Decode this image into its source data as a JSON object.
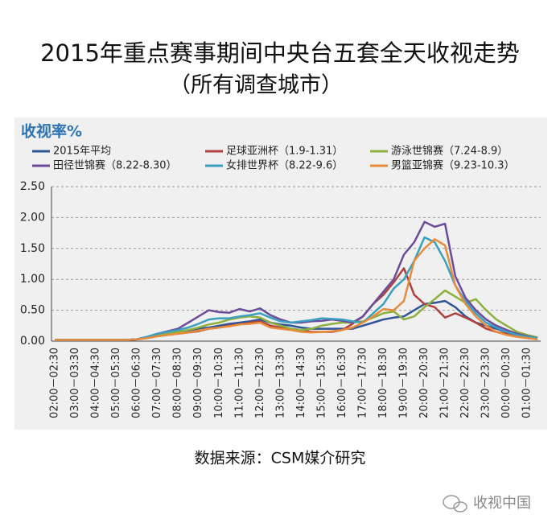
{
  "chart_data": {
    "type": "line",
    "title": "2015年重点赛事期间中央台五套全天收视走势",
    "subtitle": "（所有调查城市）",
    "y_label": "收视率%",
    "source": "数据来源：CSM媒介研究",
    "watermark": "收视中国",
    "categories": [
      "02:00－02:30",
      null,
      "03:00－03:30",
      null,
      "04:00－04:30",
      null,
      "05:00－05:30",
      null,
      "06:00－06:30",
      null,
      "07:00－07:30",
      null,
      "08:00－08:30",
      null,
      "09:00－09:30",
      null,
      "10:00－10:30",
      null,
      "11:00－11:30",
      null,
      "12:00－12:30",
      null,
      "13:00－13:30",
      null,
      "14:00－14:30",
      null,
      "15:00－15:30",
      null,
      "16:00－16:30",
      null,
      "17:00－17:30",
      null,
      "18:00－18:30",
      null,
      "19:00－19:30",
      null,
      "20:00－20:30",
      null,
      "21:00－21:30",
      null,
      "22:00－22:30",
      null,
      "23:00－23:30",
      null,
      "00:00－00:30",
      null,
      "01:00－01:30",
      null
    ],
    "ylim": [
      0,
      2.5
    ],
    "yticks": [
      {
        "value": 0,
        "label": "0.00"
      },
      {
        "value": 0.5,
        "label": "0.50"
      },
      {
        "value": 1,
        "label": "1.00"
      },
      {
        "value": 1.5,
        "label": "1.50"
      },
      {
        "value": 2,
        "label": "2.00"
      },
      {
        "value": 2.5,
        "label": "2.50"
      }
    ],
    "grid": true,
    "series": [
      {
        "name": "2015年平均",
        "color": "#2f5597",
        "values": [
          0.02,
          0.02,
          0.02,
          0.02,
          0.02,
          0.02,
          0.02,
          0.02,
          0.03,
          0.06,
          0.1,
          0.13,
          0.15,
          0.17,
          0.2,
          0.22,
          0.25,
          0.28,
          0.3,
          0.32,
          0.35,
          0.3,
          0.27,
          0.25,
          0.22,
          0.2,
          0.2,
          0.2,
          0.2,
          0.2,
          0.25,
          0.3,
          0.35,
          0.38,
          0.4,
          0.5,
          0.6,
          0.62,
          0.65,
          0.55,
          0.4,
          0.3,
          0.25,
          0.2,
          0.15,
          0.1,
          0.07,
          0.05
        ]
      },
      {
        "name": "足球亚洲杯（1.9-1.31）",
        "color": "#b0413e",
        "values": [
          0.02,
          0.02,
          0.02,
          0.02,
          0.02,
          0.02,
          0.02,
          0.02,
          0.03,
          0.05,
          0.08,
          0.1,
          0.12,
          0.14,
          0.16,
          0.2,
          0.22,
          0.25,
          0.27,
          0.3,
          0.32,
          0.25,
          0.22,
          0.2,
          0.18,
          0.15,
          0.15,
          0.15,
          0.18,
          0.28,
          0.4,
          0.6,
          0.75,
          0.95,
          1.18,
          0.75,
          0.6,
          0.55,
          0.38,
          0.45,
          0.38,
          0.3,
          0.2,
          0.15,
          0.12,
          0.1,
          0.06,
          0.03
        ]
      },
      {
        "name": "游泳世锦赛（7.24-8.9）",
        "color": "#8db03f",
        "values": [
          0.02,
          0.02,
          0.02,
          0.02,
          0.02,
          0.02,
          0.02,
          0.02,
          0.03,
          0.06,
          0.1,
          0.13,
          0.15,
          0.18,
          0.22,
          0.27,
          0.3,
          0.35,
          0.38,
          0.4,
          0.38,
          0.3,
          0.25,
          0.2,
          0.18,
          0.2,
          0.25,
          0.28,
          0.3,
          0.3,
          0.32,
          0.38,
          0.45,
          0.48,
          0.35,
          0.4,
          0.55,
          0.68,
          0.82,
          0.72,
          0.62,
          0.68,
          0.5,
          0.35,
          0.25,
          0.15,
          0.1,
          0.06
        ]
      },
      {
        "name": "田径世锦赛（8.22-8.30）",
        "color": "#6b4c9a",
        "values": [
          0.02,
          0.02,
          0.02,
          0.02,
          0.02,
          0.02,
          0.02,
          0.02,
          0.03,
          0.07,
          0.12,
          0.16,
          0.2,
          0.3,
          0.4,
          0.5,
          0.47,
          0.46,
          0.52,
          0.48,
          0.53,
          0.42,
          0.35,
          0.3,
          0.3,
          0.32,
          0.33,
          0.35,
          0.33,
          0.3,
          0.4,
          0.6,
          0.8,
          1.0,
          1.4,
          1.6,
          1.93,
          1.85,
          1.9,
          1.05,
          0.7,
          0.5,
          0.35,
          0.25,
          0.18,
          0.12,
          0.08,
          0.05
        ]
      },
      {
        "name": "女排世界杯（8.22-9.6）",
        "color": "#3a9fc0",
        "values": [
          0.02,
          0.02,
          0.02,
          0.02,
          0.02,
          0.02,
          0.02,
          0.02,
          0.03,
          0.07,
          0.12,
          0.15,
          0.18,
          0.22,
          0.28,
          0.35,
          0.37,
          0.37,
          0.4,
          0.42,
          0.45,
          0.38,
          0.32,
          0.3,
          0.32,
          0.34,
          0.37,
          0.36,
          0.35,
          0.32,
          0.3,
          0.45,
          0.6,
          0.85,
          1.0,
          1.3,
          1.68,
          1.6,
          1.3,
          0.9,
          0.65,
          0.45,
          0.3,
          0.22,
          0.15,
          0.1,
          0.07,
          0.05
        ]
      },
      {
        "name": "男篮亚锦赛（9.23-10.3）",
        "color": "#e88b3a",
        "values": [
          0.02,
          0.02,
          0.02,
          0.02,
          0.02,
          0.02,
          0.02,
          0.02,
          0.03,
          0.05,
          0.08,
          0.1,
          0.12,
          0.14,
          0.17,
          0.2,
          0.22,
          0.24,
          0.27,
          0.28,
          0.3,
          0.22,
          0.2,
          0.18,
          0.15,
          0.14,
          0.15,
          0.16,
          0.18,
          0.22,
          0.3,
          0.4,
          0.52,
          0.5,
          0.65,
          1.3,
          1.5,
          1.65,
          1.55,
          0.9,
          0.6,
          0.4,
          0.25,
          0.15,
          0.1,
          0.07,
          0.05,
          0.03
        ]
      }
    ]
  }
}
